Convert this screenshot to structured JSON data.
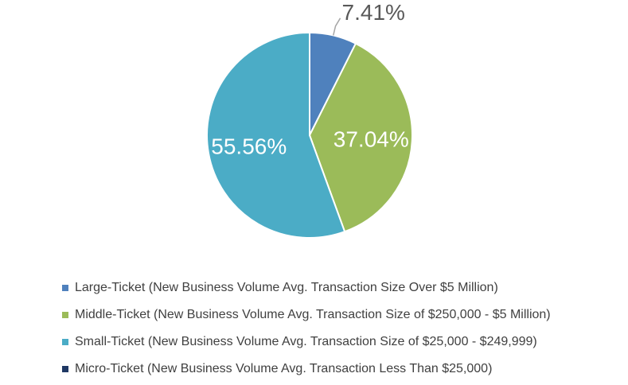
{
  "chart_data": {
    "type": "pie",
    "title": "",
    "slices": [
      {
        "name": "Large-Ticket (New Business Volume Avg. Transaction Size Over $5 Million)",
        "value": 7.41,
        "label": "7.41%",
        "color": "#4f81bd"
      },
      {
        "name": "Middle-Ticket (New Business Volume Avg. Transaction Size of $250,000 - $5 Million)",
        "value": 37.04,
        "label": "37.04%",
        "color": "#9bbb59"
      },
      {
        "name": "Small-Ticket (New Business Volume Avg. Transaction Size of $25,000 - $249,999)",
        "value": 55.56,
        "label": "55.56%",
        "color": "#4bacc6"
      },
      {
        "name": "Micro-Ticket (New Business Volume Avg. Transaction Less Than $25,000)",
        "value": 0,
        "label": "",
        "color": "#1f3864"
      }
    ],
    "legend_position": "bottom"
  }
}
